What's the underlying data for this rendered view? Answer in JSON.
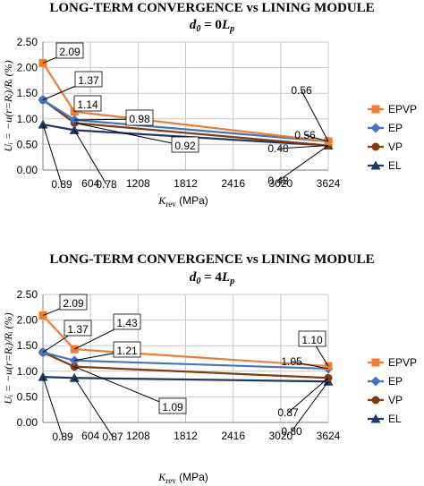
{
  "chart_data": [
    {
      "type": "line",
      "title": "LONG-TERM CONVERGENCE vs LINING MODULE",
      "subtitle": "d₀ = 0Lₚ",
      "subtitle_parts": {
        "d": "d",
        "dsub": "0",
        "eq": " = 0",
        "L": "L",
        "Lsub": "p"
      },
      "xlabel": {
        "main": "K",
        "sub": "rev",
        "unit": "(MPa)"
      },
      "ylabel": "Uᵢ = −u(r=Rᵢ)/Rᵢ (%)",
      "x": [
        0,
        400,
        3624
      ],
      "xticks": [
        "604",
        "1208",
        "1812",
        "2416",
        "3020",
        "3624"
      ],
      "xtick_values": [
        604,
        1208,
        1812,
        2416,
        3020,
        3624
      ],
      "xlim": [
        0,
        3624
      ],
      "yticks": [
        "0.00",
        "0.50",
        "1.00",
        "1.50",
        "2.00",
        "2.50"
      ],
      "ylim": [
        0,
        2.5
      ],
      "grid": true,
      "legend_position": "right",
      "series": [
        {
          "name": "EPVP",
          "values": [
            2.09,
            1.14,
            0.56
          ],
          "color": "#ED7D31",
          "marker": "square"
        },
        {
          "name": "EP",
          "values": [
            1.37,
            0.98,
            0.56
          ],
          "color": "#4472C4",
          "marker": "diamond"
        },
        {
          "name": "VP",
          "values": [
            1.37,
            0.92,
            0.48
          ],
          "color": "#843C0C",
          "marker": "circle"
        },
        {
          "name": "EL",
          "values": [
            0.89,
            0.78,
            0.48
          ],
          "color": "#203864",
          "marker": "triangle"
        }
      ],
      "annotations": [
        "2.09",
        "1.37",
        "1.14",
        "0.98",
        "0.92",
        "0.89",
        "0.78",
        "0.56",
        "0.56",
        "0.48",
        "0.48"
      ]
    },
    {
      "type": "line",
      "title": "LONG-TERM CONVERGENCE vs LINING MODULE",
      "subtitle": "d₀ = 4Lₚ",
      "subtitle_parts": {
        "d": "d",
        "dsub": "0",
        "eq": " = 4",
        "L": "L",
        "Lsub": "p"
      },
      "xlabel": {
        "main": "K",
        "sub": "rev",
        "unit": "(MPa)"
      },
      "ylabel": "Uᵢ = −u(r=Rᵢ)/Rᵢ (%)",
      "x": [
        0,
        400,
        3624
      ],
      "xticks": [
        "604",
        "1208",
        "1812",
        "2416",
        "3020",
        "3624"
      ],
      "xtick_values": [
        604,
        1208,
        1812,
        2416,
        3020,
        3624
      ],
      "xlim": [
        0,
        3624
      ],
      "yticks": [
        "0.00",
        "0.50",
        "1.00",
        "1.50",
        "2.00",
        "2.50"
      ],
      "ylim": [
        0,
        2.5
      ],
      "grid": true,
      "legend_position": "right",
      "series": [
        {
          "name": "EPVP",
          "values": [
            2.09,
            1.43,
            1.1
          ],
          "color": "#ED7D31",
          "marker": "square"
        },
        {
          "name": "EP",
          "values": [
            1.37,
            1.21,
            1.05
          ],
          "color": "#4472C4",
          "marker": "diamond"
        },
        {
          "name": "VP",
          "values": [
            1.37,
            1.09,
            0.87
          ],
          "color": "#843C0C",
          "marker": "circle"
        },
        {
          "name": "EL",
          "values": [
            0.89,
            0.87,
            0.8
          ],
          "color": "#203864",
          "marker": "triangle"
        }
      ],
      "annotations": [
        "2.09",
        "1.37",
        "1.43",
        "1.21",
        "1.09",
        "0.89",
        "0.87",
        "1.10",
        "1.05",
        "0.87",
        "0.80"
      ]
    }
  ]
}
